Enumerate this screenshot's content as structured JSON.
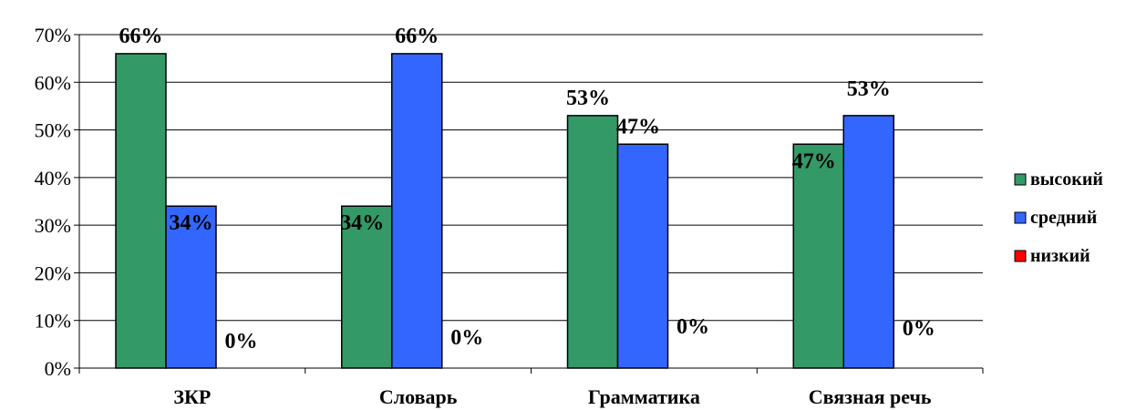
{
  "chart_data": {
    "type": "bar",
    "categories": [
      "ЗКР",
      "Словарь",
      "Грамматика",
      "Связная речь"
    ],
    "series": [
      {
        "name": "высокий",
        "color": "#339966",
        "values": [
          66,
          34,
          53,
          47
        ]
      },
      {
        "name": "средний",
        "color": "#3366ff",
        "values": [
          34,
          66,
          47,
          53
        ]
      },
      {
        "name": "низкий",
        "color": "#ff0000",
        "values": [
          0,
          0,
          0,
          0
        ]
      }
    ],
    "data_labels": [
      [
        "66%",
        "34%",
        "53%",
        "47%"
      ],
      [
        "34%",
        "66%",
        "47%",
        "53%"
      ],
      [
        "0%",
        "0%",
        "0%",
        "0%"
      ]
    ],
    "ylim": [
      0,
      70
    ],
    "y_ticks": [
      0,
      10,
      20,
      30,
      40,
      50,
      60,
      70
    ],
    "y_tick_labels": [
      "0%",
      "10%",
      "20%",
      "30%",
      "40%",
      "50%",
      "60%",
      "70%"
    ],
    "grid": true,
    "legend_position": "right"
  }
}
